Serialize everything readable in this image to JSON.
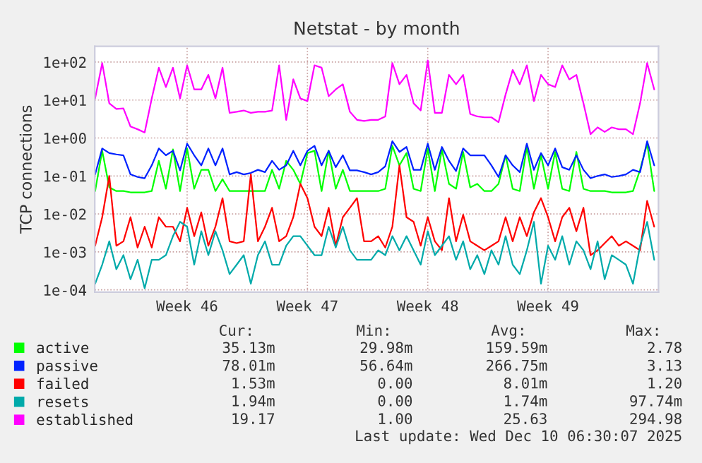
{
  "chart_data": {
    "type": "line",
    "title": "Netstat - by month",
    "ylabel": "TCP connections",
    "log": true,
    "grid": true,
    "legend": "bottom left",
    "categories": [
      null,
      null,
      null,
      null,
      null,
      null,
      null,
      null,
      null,
      null,
      null,
      null,
      null,
      "Week 46",
      null,
      null,
      null,
      null,
      null,
      null,
      null,
      null,
      null,
      null,
      null,
      null,
      null,
      null,
      null,
      null,
      "Week 47",
      null,
      null,
      null,
      null,
      null,
      null,
      null,
      null,
      null,
      null,
      null,
      null,
      null,
      null,
      null,
      null,
      "Week 48",
      null,
      null,
      null,
      null,
      null,
      null,
      null,
      null,
      null,
      null,
      null,
      null,
      null,
      null,
      null,
      null,
      "Week 49",
      null,
      null,
      null,
      null,
      null,
      null,
      null,
      null,
      null,
      null,
      null,
      null,
      null,
      null,
      null
    ],
    "ylim": [
      8.7e-05,
      260
    ],
    "yticks": [
      {
        "value": 0.0001,
        "label": "1e-04"
      },
      {
        "value": 0.001,
        "label": "1e-03"
      },
      {
        "value": 0.01,
        "label": "1e-02"
      },
      {
        "value": 0.1,
        "label": "1e-01"
      },
      {
        "value": 1,
        "label": "1e+00"
      },
      {
        "value": 10,
        "label": "1e+01"
      },
      {
        "value": 100,
        "label": "1e+02"
      }
    ],
    "series": [
      {
        "name": "active",
        "color": "#00ff00",
        "values": [
          0.04,
          0.46,
          0.05,
          0.04,
          0.04,
          0.037,
          0.037,
          0.037,
          0.04,
          0.25,
          0.046,
          0.5,
          0.04,
          0.53,
          0.046,
          0.145,
          0.145,
          0.04,
          0.082,
          0.04,
          0.04,
          0.04,
          0.04,
          0.04,
          0.04,
          0.145,
          0.046,
          0.25,
          0.145,
          0.062,
          0.4,
          0.46,
          0.04,
          0.46,
          0.046,
          0.145,
          0.04,
          0.04,
          0.04,
          0.04,
          0.04,
          0.046,
          0.62,
          0.19,
          0.4,
          0.046,
          0.04,
          0.53,
          0.04,
          0.5,
          0.062,
          0.046,
          0.43,
          0.05,
          0.062,
          0.04,
          0.04,
          0.062,
          0.35,
          0.046,
          0.04,
          0.58,
          0.046,
          0.35,
          0.046,
          0.43,
          0.046,
          0.04,
          0.43,
          0.046,
          0.04,
          0.04,
          0.04,
          0.037,
          0.037,
          0.037,
          0.04,
          0.145,
          0.71,
          0.04
        ]
      },
      {
        "name": "passive",
        "color": "#0022ff",
        "values": [
          0.11,
          0.53,
          0.4,
          0.37,
          0.35,
          0.11,
          0.094,
          0.087,
          0.19,
          0.53,
          0.35,
          0.46,
          0.14,
          0.71,
          0.35,
          0.19,
          0.53,
          0.19,
          0.53,
          0.11,
          0.126,
          0.11,
          0.12,
          0.145,
          0.126,
          0.25,
          0.145,
          0.19,
          0.46,
          0.19,
          0.46,
          0.62,
          0.19,
          0.46,
          0.17,
          0.35,
          0.14,
          0.14,
          0.126,
          0.11,
          0.126,
          0.18,
          0.82,
          0.43,
          0.58,
          0.145,
          0.145,
          0.71,
          0.145,
          0.58,
          0.25,
          0.135,
          0.53,
          0.35,
          0.35,
          0.35,
          0.19,
          0.094,
          0.35,
          0.19,
          0.126,
          0.71,
          0.145,
          0.4,
          0.19,
          0.53,
          0.17,
          0.145,
          0.35,
          0.145,
          0.087,
          0.1,
          0.11,
          0.094,
          0.1,
          0.11,
          0.145,
          0.126,
          0.82,
          0.19
        ]
      },
      {
        "name": "failed",
        "color": "#ff0000",
        "values": [
          0.00145,
          0.0082,
          0.1,
          0.00145,
          0.0019,
          0.0082,
          0.0013,
          0.0046,
          0.0013,
          0.0082,
          0.0046,
          0.0046,
          0.0019,
          0.0145,
          0.0026,
          0.011,
          0.00145,
          0.0046,
          0.026,
          0.0019,
          0.0017,
          0.0019,
          0.11,
          0.0019,
          0.0046,
          0.0145,
          0.0019,
          0.0026,
          0.0082,
          0.062,
          0.026,
          0.0046,
          0.0026,
          0.0145,
          0.00145,
          0.0082,
          0.0145,
          0.026,
          0.0019,
          0.0019,
          0.0026,
          0.0013,
          0.0046,
          0.19,
          0.0082,
          0.0062,
          0.00145,
          0.0082,
          0.0019,
          0.0011,
          0.026,
          0.0019,
          0.0095,
          0.0019,
          0.00145,
          0.0011,
          0.00145,
          0.0019,
          0.0082,
          0.0019,
          0.0082,
          0.0026,
          0.011,
          0.026,
          0.0082,
          0.0019,
          0.0082,
          0.0145,
          0.0035,
          0.0145,
          0.00082,
          0.0011,
          0.0017,
          0.0026,
          0.00145,
          0.0019,
          0.00145,
          0.0011,
          0.022,
          0.0046
        ]
      },
      {
        "name": "resets",
        "color": "#00aaaa",
        "values": [
          0.000145,
          0.00046,
          0.0019,
          0.00035,
          0.00082,
          0.00019,
          0.00062,
          0.00011,
          0.00062,
          0.00062,
          0.00082,
          0.0026,
          0.0062,
          0.0046,
          0.00046,
          0.0035,
          0.00082,
          0.0035,
          0.0011,
          0.00026,
          0.00046,
          0.00082,
          0.000145,
          0.00082,
          0.0019,
          0.00046,
          0.00046,
          0.00145,
          0.0026,
          0.0026,
          0.00145,
          0.00082,
          0.00082,
          0.0046,
          0.0013,
          0.0046,
          0.0011,
          0.00062,
          0.00062,
          0.00062,
          0.0011,
          0.00082,
          0.0026,
          0.0011,
          0.0026,
          0.0011,
          0.00046,
          0.0035,
          0.00082,
          0.00145,
          0.0026,
          0.00062,
          0.0019,
          0.00035,
          0.00082,
          0.00026,
          0.0011,
          0.00046,
          0.0026,
          0.00046,
          0.00026,
          0.0011,
          0.0062,
          0.000145,
          0.00145,
          0.00062,
          0.0026,
          0.00046,
          0.0019,
          0.0011,
          0.00035,
          0.0019,
          0.00019,
          0.00082,
          0.00062,
          0.00046,
          0.000145,
          0.00145,
          0.0062,
          0.00062
        ]
      },
      {
        "name": "established",
        "color": "#ff00ff",
        "values": [
          11,
          94,
          8.2,
          5.8,
          6.0,
          2.0,
          1.7,
          1.4,
          11,
          71,
          22,
          71,
          11,
          82,
          19,
          19,
          46,
          11,
          71,
          4.6,
          4.9,
          5.3,
          4.6,
          4.9,
          4.9,
          5.3,
          82,
          3.0,
          35,
          11,
          9.4,
          82,
          71,
          12.6,
          19,
          26,
          4.9,
          3.0,
          2.8,
          3.0,
          3.0,
          3.7,
          94,
          26,
          46,
          8.2,
          5.3,
          110,
          4.6,
          4.6,
          46,
          26,
          46,
          4.3,
          3.7,
          3.5,
          3.5,
          2.6,
          14,
          62,
          26,
          82,
          9.4,
          46,
          26,
          22,
          82,
          35,
          46,
          8.2,
          1.26,
          1.9,
          1.45,
          1.9,
          1.7,
          1.7,
          1.26,
          8.2,
          94,
          19
        ]
      }
    ],
    "annotations": [
      "Cur:",
      "Min:",
      "Avg:",
      "Max:",
      "35.13m",
      "29.98m",
      "159.59m",
      "2.78",
      "78.01m",
      "56.64m",
      "266.75m",
      "3.13",
      "1.53m",
      "0.00",
      "8.01m",
      "1.20",
      "1.94m",
      "0.00",
      "1.74m",
      "97.74m",
      "19.17",
      "1.00",
      "25.63",
      "294.98",
      "Last update: Wed Dec 10 06:30:07 2025"
    ]
  }
}
